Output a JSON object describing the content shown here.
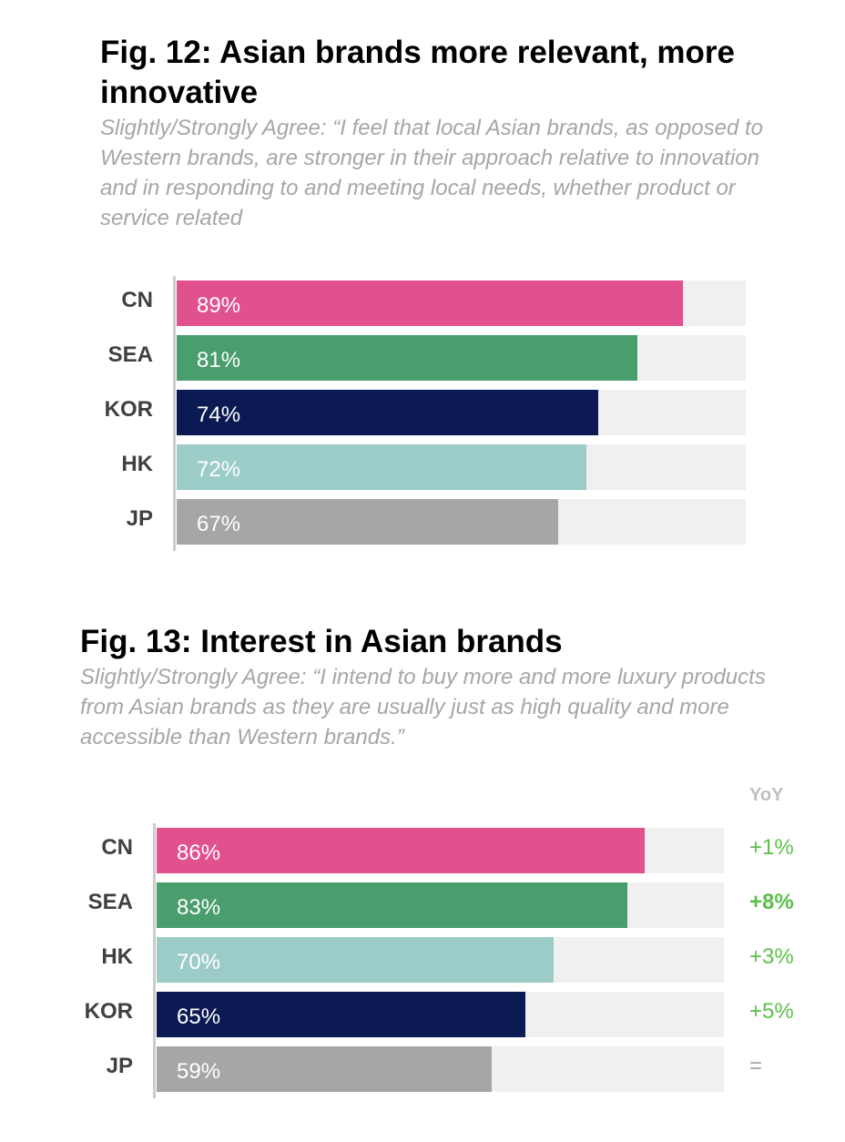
{
  "figures": [
    {
      "title": "Fig. 12: Asian brands more relevant, more innovative",
      "subtitle": "Slightly/Strongly Agree: “I feel that local Asian brands, as opposed to Western brands, are stronger in their approach relative to innovation and in responding to and meeting local needs, whether product or service related"
    },
    {
      "title": "Fig. 13: Interest in Asian brands",
      "subtitle": "Slightly/Strongly Agree: “I intend to buy more and more luxury products from Asian brands as they are usually just as high quality and more accessible than Western brands.”",
      "yoy_header": "YoY"
    }
  ],
  "colors": {
    "CN": "#e0518e",
    "SEA": "#4a9d6d",
    "KOR": "#0b1a52",
    "HK": "#9cccc7",
    "JP": "#a6a6a6",
    "track": "#f0f0f0",
    "yoy_positive": "#5cbf4a"
  },
  "chart_data": [
    {
      "type": "bar",
      "orientation": "horizontal",
      "categories": [
        "CN",
        "SEA",
        "KOR",
        "HK",
        "JP"
      ],
      "values": [
        89,
        81,
        74,
        72,
        67
      ],
      "labels": [
        "89%",
        "81%",
        "74%",
        "72%",
        "67%"
      ],
      "xlim": [
        0,
        100
      ],
      "title": "Fig. 12: Asian brands more relevant, more innovative"
    },
    {
      "type": "bar",
      "orientation": "horizontal",
      "categories": [
        "CN",
        "SEA",
        "HK",
        "KOR",
        "JP"
      ],
      "values": [
        86,
        83,
        70,
        65,
        59
      ],
      "labels": [
        "86%",
        "83%",
        "70%",
        "65%",
        "59%"
      ],
      "yoy": [
        "+1%",
        "+8%",
        "+3%",
        "+5%",
        "="
      ],
      "xlim": [
        0,
        100
      ],
      "title": "Fig. 13: Interest in Asian brands"
    }
  ]
}
